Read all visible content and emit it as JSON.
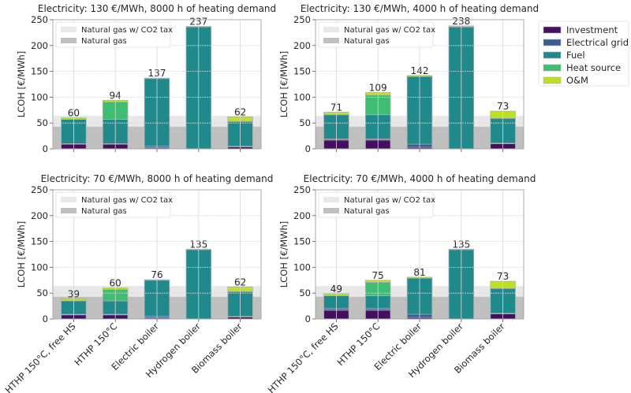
{
  "colors": {
    "investment": "#440f62",
    "electrical_grid": "#3a5a94",
    "fuel": "#20898b",
    "heat_source": "#3fbd72",
    "om": "#bddf26",
    "gas_co2": "#e8e8e8",
    "gas": "#bfbfbf"
  },
  "legend": {
    "items": [
      {
        "key": "investment",
        "label": "Investment"
      },
      {
        "key": "electrical_grid",
        "label": "Electrical grid"
      },
      {
        "key": "fuel",
        "label": "Fuel"
      },
      {
        "key": "heat_source",
        "label": "Heat source"
      },
      {
        "key": "om",
        "label": "O&M"
      }
    ],
    "band_items": [
      {
        "key": "gas_co2",
        "label": "Natural gas w/ CO2 tax"
      },
      {
        "key": "gas",
        "label": "Natural gas"
      }
    ]
  },
  "chart_data": [
    {
      "type": "bar",
      "stacked": true,
      "title": "Electricity: 130 €/MWh, 8000 h of heating demand",
      "ylabel": "LCOH [€/MWh]",
      "ylim": [
        0,
        250
      ],
      "yticks": [
        0,
        50,
        100,
        150,
        200,
        250
      ],
      "grid": true,
      "bands": {
        "gas": 43,
        "gas_co2": 64
      },
      "categories": [
        "HTHP 150°C, free HS",
        "HTHP 150°C",
        "Electric boiler",
        "Hydrogen boiler",
        "Biomass boiler"
      ],
      "totals": [
        60,
        94,
        137,
        237,
        62
      ],
      "series": [
        {
          "key": "investment",
          "name": "Investment",
          "values": [
            9,
            9,
            2,
            0,
            4
          ]
        },
        {
          "key": "electrical_grid",
          "name": "Electrical grid",
          "values": [
            1,
            1,
            3,
            0,
            1
          ]
        },
        {
          "key": "fuel",
          "name": "Fuel",
          "values": [
            47,
            47,
            131,
            236,
            48
          ]
        },
        {
          "key": "heat_source",
          "name": "Heat source",
          "values": [
            0,
            34,
            0,
            0,
            0
          ]
        },
        {
          "key": "om",
          "name": "O&M",
          "values": [
            3,
            3,
            1,
            1,
            9
          ]
        }
      ]
    },
    {
      "type": "bar",
      "stacked": true,
      "title": "Electricity: 130 €/MWh, 4000 h of heating demand",
      "ylabel": "LCOH [€/MWh]",
      "ylim": [
        0,
        250
      ],
      "yticks": [
        0,
        50,
        100,
        150,
        200,
        250
      ],
      "grid": true,
      "bands": {
        "gas": 43,
        "gas_co2": 64
      },
      "categories": [
        "HTHP 150°C, free HS",
        "HTHP 150°C",
        "Electric boiler",
        "Hydrogen boiler",
        "Biomass boiler"
      ],
      "totals": [
        71,
        109,
        142,
        238,
        73
      ],
      "series": [
        {
          "key": "investment",
          "name": "Investment",
          "values": [
            17,
            17,
            3,
            0,
            10
          ]
        },
        {
          "key": "electrical_grid",
          "name": "Electrical grid",
          "values": [
            2,
            2,
            6,
            0,
            1
          ]
        },
        {
          "key": "fuel",
          "name": "Fuel",
          "values": [
            47,
            47,
            131,
            236,
            48
          ]
        },
        {
          "key": "heat_source",
          "name": "Heat source",
          "values": [
            0,
            38,
            0,
            0,
            0
          ]
        },
        {
          "key": "om",
          "name": "O&M",
          "values": [
            5,
            5,
            2,
            2,
            14
          ]
        }
      ]
    },
    {
      "type": "bar",
      "stacked": true,
      "title": "Electricity: 70 €/MWh, 8000 h of heating demand",
      "ylabel": "LCOH [€/MWh]",
      "ylim": [
        0,
        250
      ],
      "yticks": [
        0,
        50,
        100,
        150,
        200,
        250
      ],
      "grid": true,
      "bands": {
        "gas": 43,
        "gas_co2": 64
      },
      "categories": [
        "HTHP 150°C, free HS",
        "HTHP 150°C",
        "Electric boiler",
        "Hydrogen boiler",
        "Biomass boiler"
      ],
      "totals": [
        39,
        60,
        76,
        135,
        62
      ],
      "series": [
        {
          "key": "investment",
          "name": "Investment",
          "values": [
            8,
            8,
            2,
            0,
            4
          ]
        },
        {
          "key": "electrical_grid",
          "name": "Electrical grid",
          "values": [
            1,
            1,
            3,
            0,
            1
          ]
        },
        {
          "key": "fuel",
          "name": "Fuel",
          "values": [
            26,
            26,
            70,
            134,
            48
          ]
        },
        {
          "key": "heat_source",
          "name": "Heat source",
          "values": [
            0,
            22,
            0,
            0,
            0
          ]
        },
        {
          "key": "om",
          "name": "O&M",
          "values": [
            4,
            3,
            1,
            1,
            9
          ]
        }
      ]
    },
    {
      "type": "bar",
      "stacked": true,
      "title": "Electricity: 70 €/MWh, 4000 h of heating demand",
      "ylabel": "LCOH [€/MWh]",
      "ylim": [
        0,
        250
      ],
      "yticks": [
        0,
        50,
        100,
        150,
        200,
        250
      ],
      "grid": true,
      "bands": {
        "gas": 43,
        "gas_co2": 64
      },
      "categories": [
        "HTHP 150°C, free HS",
        "HTHP 150°C",
        "Electric boiler",
        "Hydrogen boiler",
        "Biomass boiler"
      ],
      "totals": [
        49,
        75,
        81,
        135,
        73
      ],
      "series": [
        {
          "key": "investment",
          "name": "Investment",
          "values": [
            17,
            17,
            3,
            0,
            10
          ]
        },
        {
          "key": "electrical_grid",
          "name": "Electrical grid",
          "values": [
            3,
            3,
            6,
            0,
            1
          ]
        },
        {
          "key": "fuel",
          "name": "Fuel",
          "values": [
            25,
            25,
            70,
            134,
            48
          ]
        },
        {
          "key": "heat_source",
          "name": "Heat source",
          "values": [
            0,
            26,
            0,
            0,
            0
          ]
        },
        {
          "key": "om",
          "name": "O&M",
          "values": [
            4,
            4,
            2,
            1,
            14
          ]
        }
      ]
    }
  ]
}
